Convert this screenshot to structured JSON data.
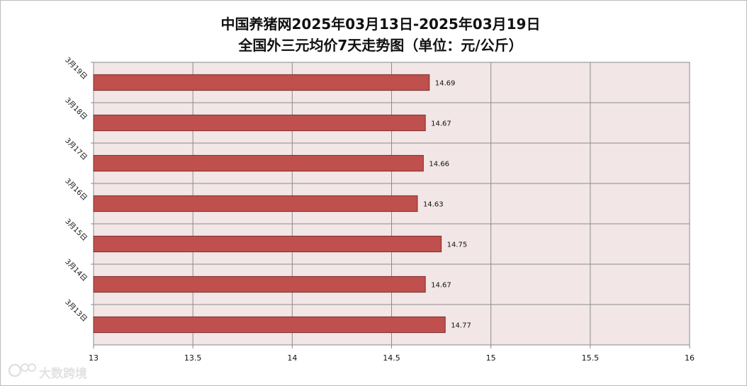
{
  "chart_data": {
    "type": "bar",
    "orientation": "horizontal",
    "title_line1": "中国养猪网2025年03月13日-2025年03月19日",
    "title_line2": "全国外三元均价7天走势图（单位：元/公斤）",
    "categories": [
      "3月19日",
      "3月18日",
      "3月17日",
      "3月16日",
      "3月15日",
      "3月14日",
      "3月13日"
    ],
    "values": [
      14.69,
      14.67,
      14.66,
      14.63,
      14.75,
      14.67,
      14.77
    ],
    "value_labels": [
      "14.69",
      "14.67",
      "14.66",
      "14.63",
      "14.75",
      "14.67",
      "14.77"
    ],
    "xlim": [
      13,
      16
    ],
    "x_ticks": [
      "13",
      "13.5",
      "14",
      "14.5",
      "15",
      "15.5",
      "16"
    ],
    "grid": true,
    "bar_color": "#c0504d",
    "plot_background": "#f2e6e6"
  },
  "watermark": {
    "text": "大数跨境",
    "icon": "logo-icon"
  }
}
